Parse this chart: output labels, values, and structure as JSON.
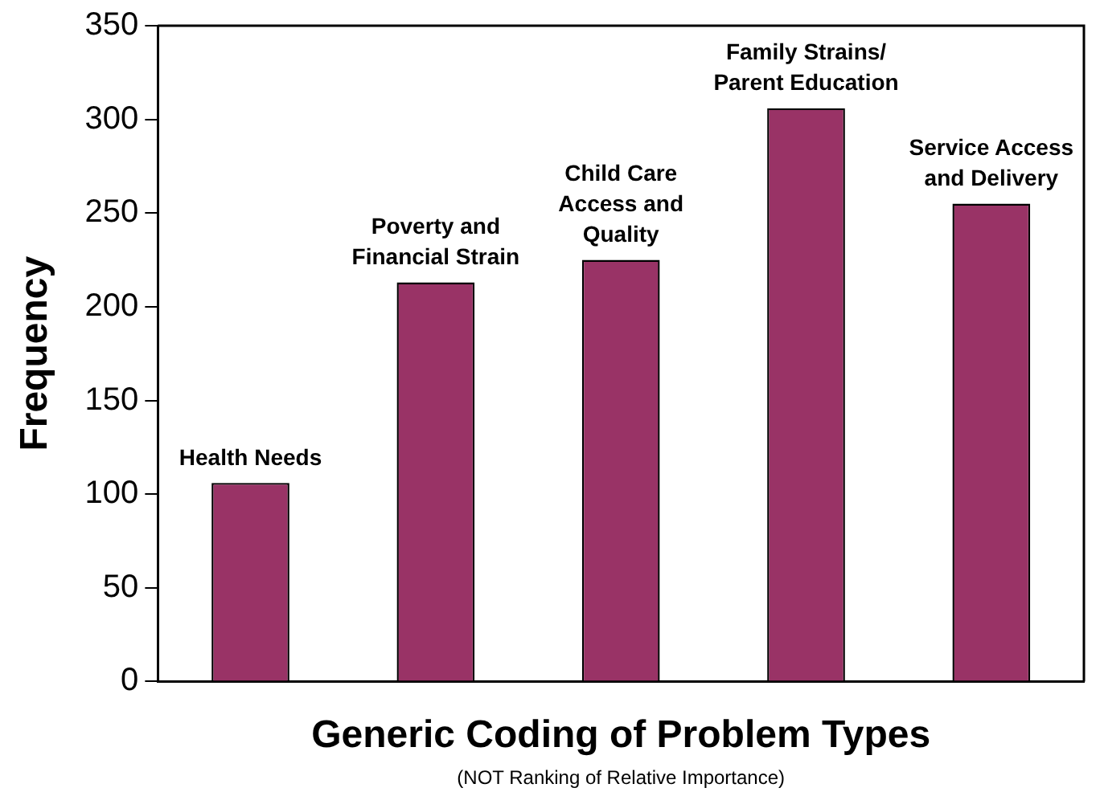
{
  "chart_data": {
    "type": "bar",
    "xlabel": "Generic Coding of Problem Types",
    "ylabel": "Frequency",
    "annotations": [
      "(NOT Ranking of Relative Importance)"
    ],
    "categories": [
      "Health Needs",
      "Poverty and\nFinancial Strain",
      "Child Care\nAccess and\nQuality",
      "Family Strains/\nParent Education",
      "Service Access\nand Delivery"
    ],
    "values": [
      106,
      213,
      225,
      306,
      255
    ],
    "color": "#993366",
    "ylim": [
      0,
      350
    ],
    "yticks": [
      0,
      50,
      100,
      150,
      200,
      250,
      300,
      350
    ],
    "grid": false,
    "legend": false,
    "tick_labels": "y"
  }
}
